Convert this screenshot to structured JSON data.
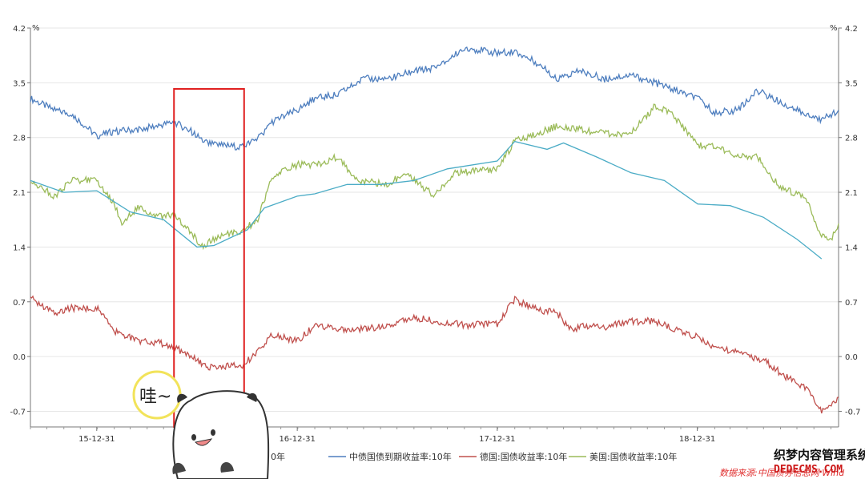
{
  "chart_data": {
    "type": "line",
    "unit_left": "%",
    "unit_right": "%",
    "ylim": [
      -0.9,
      4.2
    ],
    "y_ticks": [
      4.2,
      3.5,
      2.8,
      2.1,
      1.4,
      0.7,
      0.0,
      -0.7
    ],
    "y_tick_labels": [
      "4.2",
      "3.5",
      "2.8",
      "2.1",
      "1.4",
      "0.7",
      "0.0",
      "-0.7"
    ],
    "x_ticks": [
      "2015-12-31",
      "2016-12-31",
      "2017-12-31",
      "2018-12-31"
    ],
    "x_tick_labels": [
      "15-12-31",
      "16-12-31",
      "17-12-31",
      "18-12-31"
    ],
    "xlim": [
      "2015-09-01",
      "2019-09-15"
    ],
    "grid": true,
    "legend_position": "bottom",
    "source": "数据来源:中国债券信息网 Wind",
    "highlight_box": {
      "x_start": "2016-05-20",
      "x_end": "2016-09-25",
      "color": "#e02020"
    },
    "series": [
      {
        "name": "中债国债到期收益率:10年",
        "color": "#4f7fbf",
        "points": [
          [
            "2015-09-01",
            3.3
          ],
          [
            "2015-10-15",
            3.15
          ],
          [
            "2015-11-15",
            3.1
          ],
          [
            "2015-12-31",
            2.82
          ],
          [
            "2016-02-01",
            2.88
          ],
          [
            "2016-03-15",
            2.9
          ],
          [
            "2016-04-20",
            2.95
          ],
          [
            "2016-05-20",
            3.0
          ],
          [
            "2016-06-20",
            2.88
          ],
          [
            "2016-07-20",
            2.72
          ],
          [
            "2016-08-15",
            2.7
          ],
          [
            "2016-09-20",
            2.68
          ],
          [
            "2016-10-20",
            2.78
          ],
          [
            "2016-11-15",
            3.0
          ],
          [
            "2016-12-31",
            3.15
          ],
          [
            "2017-02-01",
            3.3
          ],
          [
            "2017-03-15",
            3.35
          ],
          [
            "2017-05-01",
            3.55
          ],
          [
            "2017-06-15",
            3.55
          ],
          [
            "2017-08-01",
            3.65
          ],
          [
            "2017-09-15",
            3.7
          ],
          [
            "2017-11-01",
            3.95
          ],
          [
            "2017-12-31",
            3.88
          ],
          [
            "2018-02-01",
            3.9
          ],
          [
            "2018-03-15",
            3.75
          ],
          [
            "2018-04-20",
            3.55
          ],
          [
            "2018-06-01",
            3.65
          ],
          [
            "2018-07-15",
            3.55
          ],
          [
            "2018-09-01",
            3.6
          ],
          [
            "2018-10-15",
            3.5
          ],
          [
            "2018-12-31",
            3.3
          ],
          [
            "2019-02-01",
            3.12
          ],
          [
            "2019-03-15",
            3.15
          ],
          [
            "2019-04-20",
            3.4
          ],
          [
            "2019-06-01",
            3.25
          ],
          [
            "2019-07-15",
            3.1
          ],
          [
            "2019-08-15",
            3.02
          ],
          [
            "2019-09-15",
            3.15
          ]
        ]
      },
      {
        "name": "德国:国债收益率:10年",
        "color": "#c0504d",
        "points": [
          [
            "2015-09-01",
            0.75
          ],
          [
            "2015-10-15",
            0.55
          ],
          [
            "2015-11-15",
            0.62
          ],
          [
            "2015-12-31",
            0.62
          ],
          [
            "2016-02-01",
            0.32
          ],
          [
            "2016-03-15",
            0.2
          ],
          [
            "2016-04-20",
            0.18
          ],
          [
            "2016-05-20",
            0.12
          ],
          [
            "2016-06-20",
            0.0
          ],
          [
            "2016-07-20",
            -0.15
          ],
          [
            "2016-08-15",
            -0.12
          ],
          [
            "2016-09-20",
            -0.12
          ],
          [
            "2016-10-20",
            0.05
          ],
          [
            "2016-11-15",
            0.28
          ],
          [
            "2016-12-31",
            0.2
          ],
          [
            "2017-02-01",
            0.4
          ],
          [
            "2017-03-15",
            0.35
          ],
          [
            "2017-05-01",
            0.35
          ],
          [
            "2017-06-15",
            0.4
          ],
          [
            "2017-08-01",
            0.5
          ],
          [
            "2017-09-15",
            0.45
          ],
          [
            "2017-11-01",
            0.4
          ],
          [
            "2017-12-31",
            0.42
          ],
          [
            "2018-02-01",
            0.73
          ],
          [
            "2018-03-15",
            0.6
          ],
          [
            "2018-04-20",
            0.55
          ],
          [
            "2018-05-20",
            0.3
          ],
          [
            "2018-06-01",
            0.4
          ],
          [
            "2018-07-15",
            0.38
          ],
          [
            "2018-09-01",
            0.45
          ],
          [
            "2018-10-15",
            0.45
          ],
          [
            "2018-12-31",
            0.25
          ],
          [
            "2019-02-01",
            0.12
          ],
          [
            "2019-03-15",
            0.05
          ],
          [
            "2019-05-01",
            -0.05
          ],
          [
            "2019-06-15",
            -0.28
          ],
          [
            "2019-07-20",
            -0.4
          ],
          [
            "2019-08-15",
            -0.7
          ],
          [
            "2019-09-15",
            -0.52
          ]
        ]
      },
      {
        "name": "美国:国债收益率:10年",
        "color": "#9bbb59",
        "points": [
          [
            "2015-09-01",
            2.25
          ],
          [
            "2015-10-15",
            2.05
          ],
          [
            "2015-11-15",
            2.25
          ],
          [
            "2015-12-31",
            2.27
          ],
          [
            "2016-02-01",
            1.95
          ],
          [
            "2016-02-15",
            1.7
          ],
          [
            "2016-03-15",
            1.9
          ],
          [
            "2016-04-20",
            1.8
          ],
          [
            "2016-05-20",
            1.8
          ],
          [
            "2016-06-20",
            1.6
          ],
          [
            "2016-07-08",
            1.4
          ],
          [
            "2016-08-15",
            1.55
          ],
          [
            "2016-09-20",
            1.6
          ],
          [
            "2016-10-20",
            1.75
          ],
          [
            "2016-11-15",
            2.3
          ],
          [
            "2016-12-31",
            2.45
          ],
          [
            "2017-02-01",
            2.45
          ],
          [
            "2017-03-15",
            2.55
          ],
          [
            "2017-04-20",
            2.25
          ],
          [
            "2017-06-15",
            2.2
          ],
          [
            "2017-07-15",
            2.35
          ],
          [
            "2017-09-08",
            2.05
          ],
          [
            "2017-10-15",
            2.35
          ],
          [
            "2017-12-31",
            2.4
          ],
          [
            "2018-02-01",
            2.75
          ],
          [
            "2018-03-15",
            2.85
          ],
          [
            "2018-04-20",
            2.95
          ],
          [
            "2018-06-01",
            2.9
          ],
          [
            "2018-07-15",
            2.85
          ],
          [
            "2018-09-01",
            2.85
          ],
          [
            "2018-10-15",
            3.2
          ],
          [
            "2018-11-15",
            3.1
          ],
          [
            "2018-12-31",
            2.7
          ],
          [
            "2019-02-01",
            2.7
          ],
          [
            "2019-03-15",
            2.55
          ],
          [
            "2019-04-20",
            2.55
          ],
          [
            "2019-06-01",
            2.15
          ],
          [
            "2019-07-15",
            2.05
          ],
          [
            "2019-08-15",
            1.55
          ],
          [
            "2019-09-01",
            1.5
          ],
          [
            "2019-09-15",
            1.7
          ]
        ]
      },
      {
        "name": "",
        "color": "#4bacc6",
        "points": [
          [
            "2015-09-01",
            2.25
          ],
          [
            "2015-11-01",
            2.1
          ],
          [
            "2015-12-31",
            2.12
          ],
          [
            "2016-03-01",
            1.85
          ],
          [
            "2016-05-01",
            1.75
          ],
          [
            "2016-07-01",
            1.4
          ],
          [
            "2016-08-01",
            1.42
          ],
          [
            "2016-10-01",
            1.62
          ],
          [
            "2016-11-01",
            1.9
          ],
          [
            "2016-12-31",
            2.05
          ],
          [
            "2017-02-01",
            2.08
          ],
          [
            "2017-04-01",
            2.2
          ],
          [
            "2017-06-01",
            2.2
          ],
          [
            "2017-08-01",
            2.25
          ],
          [
            "2017-10-01",
            2.4
          ],
          [
            "2017-12-31",
            2.5
          ],
          [
            "2018-02-01",
            2.75
          ],
          [
            "2018-04-01",
            2.65
          ],
          [
            "2018-05-01",
            2.73
          ],
          [
            "2018-07-01",
            2.55
          ],
          [
            "2018-09-01",
            2.35
          ],
          [
            "2018-11-01",
            2.25
          ],
          [
            "2019-01-01",
            1.95
          ],
          [
            "2019-03-01",
            1.93
          ],
          [
            "2019-05-01",
            1.78
          ],
          [
            "2019-07-01",
            1.5
          ],
          [
            "2019-08-15",
            1.25
          ]
        ]
      }
    ],
    "legend": [
      {
        "label": "0年",
        "color": "#4bacc6"
      },
      {
        "label": "中债国债到期收益率:10年",
        "color": "#4f7fbf"
      },
      {
        "label": "德国:国债收益率:10年",
        "color": "#c0504d"
      },
      {
        "label": "美国:国债收益率:10年",
        "color": "#9bbb59"
      }
    ]
  },
  "sticker": {
    "text": "哇~"
  },
  "watermark": {
    "line1": "织梦内容管理系统",
    "line2": "DEDECMS.COM"
  }
}
